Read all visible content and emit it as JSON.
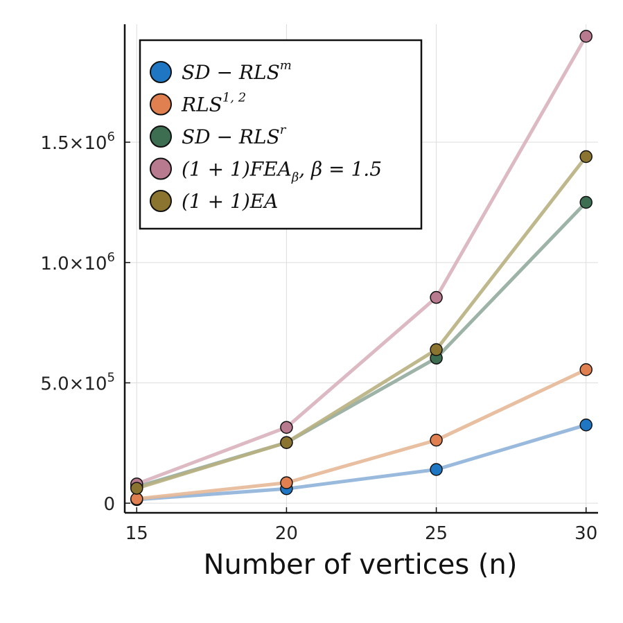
{
  "chart_data": {
    "type": "line",
    "title": "",
    "xlabel": "Number of vertices (n)",
    "ylabel": "",
    "x": [
      15,
      20,
      25,
      30
    ],
    "xlim": [
      14.6,
      30.4
    ],
    "ylim": [
      -40000,
      1990000
    ],
    "xticks": [
      15,
      20,
      25,
      30
    ],
    "xtick_labels": [
      "15",
      "20",
      "25",
      "30"
    ],
    "yticks": [
      0,
      500000,
      1000000,
      1500000
    ],
    "ytick_labels": [
      {
        "mantissa": "0",
        "exp": ""
      },
      {
        "mantissa": "5.0×10",
        "exp": "5"
      },
      {
        "mantissa": "1.0×10",
        "exp": "6"
      },
      {
        "mantissa": "1.5×10",
        "exp": "6"
      }
    ],
    "grid": true,
    "legend_position": "top-left",
    "series": [
      {
        "name": "SD − RLS^m",
        "legend": {
          "base": "SD − RLS",
          "sup": "m",
          "sub": "",
          "tail": ""
        },
        "values": [
          15000,
          60000,
          140000,
          325000
        ],
        "color": "#1f77c4",
        "line_color": "#8fb3d9"
      },
      {
        "name": "RLS^{1,2}",
        "legend": {
          "base": "RLS",
          "sup": "1, 2",
          "sub": "",
          "tail": ""
        },
        "values": [
          18000,
          85000,
          262000,
          555000
        ],
        "color": "#e08050",
        "line_color": "#e6b896"
      },
      {
        "name": "SD − RLS^r",
        "legend": {
          "base": "SD − RLS",
          "sup": "r",
          "sub": "",
          "tail": ""
        },
        "values": [
          68000,
          252000,
          603000,
          1250000
        ],
        "color": "#3d6e52",
        "line_color": "#93ab9f"
      },
      {
        "name": "(1 + 1)FEA_β, β = 1.5",
        "legend": {
          "base": "(1 + 1)FEA",
          "sup": "",
          "sub": "β",
          "tail": ", β = 1.5"
        },
        "values": [
          80000,
          315000,
          855000,
          1940000
        ],
        "color": "#b87a8e",
        "line_color": "#d9b3bd"
      },
      {
        "name": "(1 + 1)EA",
        "legend": {
          "base": "(1 + 1)EA",
          "sup": "",
          "sub": "",
          "tail": ""
        },
        "values": [
          62000,
          252000,
          638000,
          1440000
        ],
        "color": "#8a7430",
        "line_color": "#b8b080"
      }
    ]
  }
}
